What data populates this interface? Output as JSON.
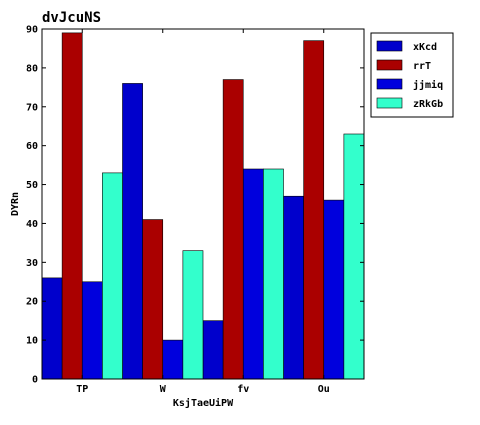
{
  "chart_data": {
    "type": "bar",
    "title": "dvJcuNS",
    "xlabel": "KsjTaeUiPW",
    "ylabel": "DYRn",
    "categories": [
      "TP",
      "W",
      "fv",
      "Ou"
    ],
    "ylim": [
      0,
      90
    ],
    "yticks": [
      0,
      10,
      20,
      30,
      40,
      50,
      60,
      70,
      80,
      90
    ],
    "grid": false,
    "legend_position": "outside-top-right",
    "series": [
      {
        "name": "xKcd",
        "color": "#0000cc",
        "values": [
          26,
          76,
          15,
          47
        ]
      },
      {
        "name": "rrT",
        "color": "#aa0000",
        "values": [
          89,
          41,
          77,
          87
        ]
      },
      {
        "name": "jjmiq",
        "color": "#0000dd",
        "values": [
          25,
          10,
          54,
          46
        ]
      },
      {
        "name": "zRkGb",
        "color": "#33ffcc",
        "values": [
          53,
          33,
          54,
          63
        ]
      }
    ]
  }
}
